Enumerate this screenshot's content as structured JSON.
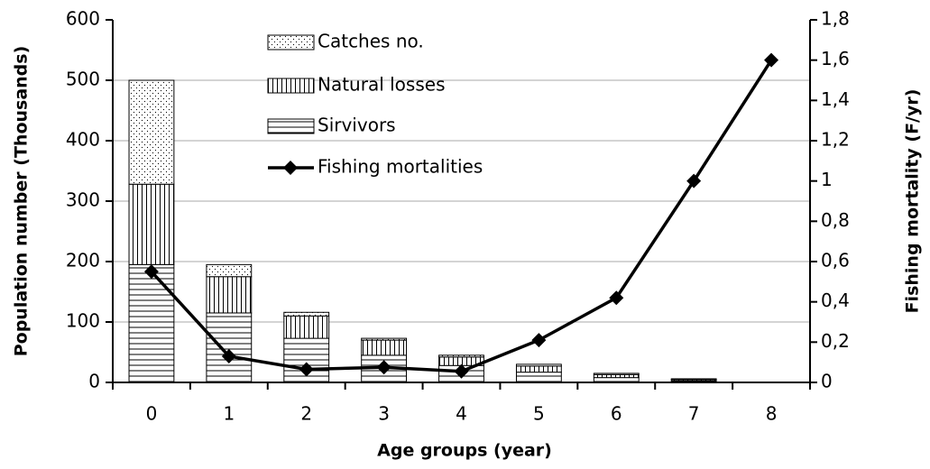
{
  "chart_data": {
    "type": "bar",
    "x_label": "Age groups (year)",
    "y_label": "Population number  (Thousands)",
    "y2_label": "Fishing mortality (F/yr)",
    "categories": [
      "0",
      "1",
      "2",
      "3",
      "4",
      "5",
      "6",
      "7",
      "8"
    ],
    "stacked": true,
    "series": [
      {
        "name": "Sirvivors",
        "color": "#000000",
        "values": [
          195,
          115,
          73,
          45,
          28,
          17,
          8,
          3,
          0
        ]
      },
      {
        "name": "Natural losses",
        "color": "#000000",
        "values": [
          133,
          60,
          37,
          25,
          14,
          10,
          5,
          2,
          0
        ]
      },
      {
        "name": "Catches no.",
        "color": "#000000",
        "values": [
          172,
          20,
          6,
          3,
          3,
          3,
          2,
          1,
          0
        ]
      },
      {
        "name": "Fishing mortalities",
        "color": "#000000",
        "type": "line",
        "axis": "y2",
        "values": [
          0.55,
          0.13,
          0.065,
          0.075,
          0.055,
          0.21,
          0.42,
          1.0,
          1.6
        ]
      }
    ],
    "ylim": [
      0,
      600
    ],
    "yticks": [
      0,
      100,
      200,
      300,
      400,
      500,
      600
    ],
    "y2lim": [
      0,
      1.8
    ],
    "y2ticks": [
      0,
      {
        "value": 0.2,
        "label": "0,2"
      },
      {
        "value": 0.4,
        "label": "0,4"
      },
      {
        "value": 0.6,
        "label": "0,6"
      },
      {
        "value": 0.8,
        "label": "0,8"
      },
      1,
      {
        "value": 1.2,
        "label": "1,2"
      },
      {
        "value": 1.4,
        "label": "1,4"
      },
      {
        "value": 1.6,
        "label": "1,6"
      },
      {
        "value": 1.8,
        "label": "1,8"
      }
    ],
    "grid": true,
    "legend": "upper center"
  }
}
